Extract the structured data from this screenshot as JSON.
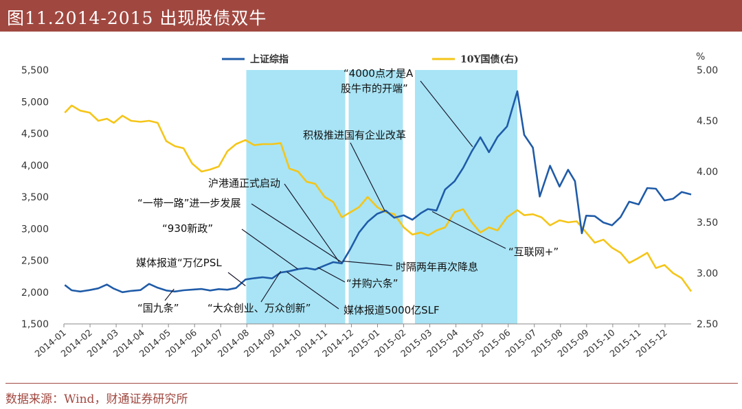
{
  "title": "图11.2014-2015 出现股债双牛",
  "source": "数据来源：Wind，财通证券研究所",
  "colors": {
    "title_bg": "#a04840",
    "shanghai": "#1f5ba8",
    "bond": "#f5c518",
    "highlight": "#a8e4f5",
    "annotation_line": "#1a1a2e"
  },
  "chart_data": {
    "type": "line",
    "x_range": [
      "2014-01",
      "2015-12"
    ],
    "x_ticks": [
      "2014-01",
      "2014-02",
      "2014-03",
      "2014-04",
      "2014-05",
      "2014-06",
      "2014-07",
      "2014-08",
      "2014-09",
      "2014-10",
      "2014-11",
      "2014-12",
      "2015-01",
      "2015-02",
      "2015-03",
      "2015-04",
      "2015-05",
      "2015-06",
      "2015-07",
      "2015-08",
      "2015-09",
      "2015-10",
      "2015-11",
      "2015-12"
    ],
    "y_left": {
      "range": [
        1500,
        5500
      ],
      "ticks": [
        "1,500",
        "2,000",
        "2,500",
        "3,000",
        "3,500",
        "4,000",
        "4,500",
        "5,000",
        "5,500"
      ]
    },
    "y_right": {
      "unit": "%",
      "range": [
        2.5,
        5.0
      ],
      "ticks": [
        "2.50",
        "3.00",
        "3.50",
        "4.00",
        "4.50",
        "5.00"
      ]
    },
    "legend": {
      "placement": "top",
      "items": [
        "上证综指",
        "10Y国债(右)"
      ]
    },
    "highlight_ranges": [
      {
        "start": "2014-08-01",
        "end": "2014-11-24"
      },
      {
        "start": "2014-11-28",
        "end": "2015-01-30"
      },
      {
        "start": "2015-02-13",
        "end": "2015-06-12"
      }
    ],
    "series": [
      {
        "name": "上证综指",
        "axis": "left",
        "points": [
          [
            "2014-01-02",
            2113
          ],
          [
            "2014-01-10",
            2030
          ],
          [
            "2014-01-20",
            2010
          ],
          [
            "2014-01-31",
            2033
          ],
          [
            "2014-02-10",
            2060
          ],
          [
            "2014-02-20",
            2120
          ],
          [
            "2014-02-28",
            2056
          ],
          [
            "2014-03-10",
            1999
          ],
          [
            "2014-03-20",
            2020
          ],
          [
            "2014-03-31",
            2033
          ],
          [
            "2014-04-10",
            2130
          ],
          [
            "2014-04-20",
            2070
          ],
          [
            "2014-04-30",
            2026
          ],
          [
            "2014-05-10",
            2010
          ],
          [
            "2014-05-20",
            2030
          ],
          [
            "2014-05-30",
            2039
          ],
          [
            "2014-06-10",
            2050
          ],
          [
            "2014-06-20",
            2026
          ],
          [
            "2014-06-30",
            2048
          ],
          [
            "2014-07-10",
            2038
          ],
          [
            "2014-07-20",
            2065
          ],
          [
            "2014-07-31",
            2200
          ],
          [
            "2014-08-10",
            2220
          ],
          [
            "2014-08-20",
            2235
          ],
          [
            "2014-08-31",
            2217
          ],
          [
            "2014-09-10",
            2310
          ],
          [
            "2014-09-20",
            2330
          ],
          [
            "2014-09-30",
            2363
          ],
          [
            "2014-10-10",
            2380
          ],
          [
            "2014-10-20",
            2356
          ],
          [
            "2014-10-31",
            2420
          ],
          [
            "2014-11-10",
            2473
          ],
          [
            "2014-11-20",
            2452
          ],
          [
            "2014-11-30",
            2682
          ],
          [
            "2014-12-10",
            2940
          ],
          [
            "2014-12-20",
            3108
          ],
          [
            "2014-12-31",
            3234
          ],
          [
            "2015-01-10",
            3285
          ],
          [
            "2015-01-20",
            3173
          ],
          [
            "2015-01-31",
            3210
          ],
          [
            "2015-02-10",
            3141
          ],
          [
            "2015-02-20",
            3246
          ],
          [
            "2015-02-28",
            3310
          ],
          [
            "2015-03-10",
            3286
          ],
          [
            "2015-03-20",
            3617
          ],
          [
            "2015-03-31",
            3747
          ],
          [
            "2015-04-10",
            3957
          ],
          [
            "2015-04-20",
            4217
          ],
          [
            "2015-04-30",
            4441
          ],
          [
            "2015-05-10",
            4205
          ],
          [
            "2015-05-20",
            4446
          ],
          [
            "2015-05-31",
            4611
          ],
          [
            "2015-06-12",
            5166
          ],
          [
            "2015-06-20",
            4478
          ],
          [
            "2015-06-30",
            4277
          ],
          [
            "2015-07-08",
            3507
          ],
          [
            "2015-07-20",
            3992
          ],
          [
            "2015-07-31",
            3663
          ],
          [
            "2015-08-10",
            3928
          ],
          [
            "2015-08-18",
            3748
          ],
          [
            "2015-08-26",
            2927
          ],
          [
            "2015-08-31",
            3205
          ],
          [
            "2015-09-10",
            3198
          ],
          [
            "2015-09-20",
            3097
          ],
          [
            "2015-09-30",
            3053
          ],
          [
            "2015-10-10",
            3183
          ],
          [
            "2015-10-20",
            3425
          ],
          [
            "2015-10-31",
            3382
          ],
          [
            "2015-11-10",
            3640
          ],
          [
            "2015-11-20",
            3630
          ],
          [
            "2015-11-30",
            3445
          ],
          [
            "2015-12-10",
            3472
          ],
          [
            "2015-12-20",
            3578
          ],
          [
            "2015-12-31",
            3539
          ]
        ]
      },
      {
        "name": "10Y国债(右)",
        "axis": "right",
        "points": [
          [
            "2014-01-02",
            4.58
          ],
          [
            "2014-01-10",
            4.65
          ],
          [
            "2014-01-20",
            4.6
          ],
          [
            "2014-01-31",
            4.58
          ],
          [
            "2014-02-10",
            4.5
          ],
          [
            "2014-02-20",
            4.52
          ],
          [
            "2014-02-28",
            4.48
          ],
          [
            "2014-03-10",
            4.55
          ],
          [
            "2014-03-20",
            4.5
          ],
          [
            "2014-03-31",
            4.49
          ],
          [
            "2014-04-10",
            4.5
          ],
          [
            "2014-04-20",
            4.48
          ],
          [
            "2014-04-30",
            4.3
          ],
          [
            "2014-05-10",
            4.25
          ],
          [
            "2014-05-20",
            4.23
          ],
          [
            "2014-05-30",
            4.08
          ],
          [
            "2014-06-10",
            4.0
          ],
          [
            "2014-06-20",
            4.02
          ],
          [
            "2014-06-30",
            4.05
          ],
          [
            "2014-07-10",
            4.2
          ],
          [
            "2014-07-20",
            4.27
          ],
          [
            "2014-07-31",
            4.31
          ],
          [
            "2014-08-10",
            4.26
          ],
          [
            "2014-08-20",
            4.27
          ],
          [
            "2014-08-31",
            4.27
          ],
          [
            "2014-09-10",
            4.28
          ],
          [
            "2014-09-20",
            4.03
          ],
          [
            "2014-09-30",
            4.0
          ],
          [
            "2014-10-10",
            3.9
          ],
          [
            "2014-10-20",
            3.88
          ],
          [
            "2014-10-31",
            3.75
          ],
          [
            "2014-11-10",
            3.7
          ],
          [
            "2014-11-20",
            3.55
          ],
          [
            "2014-11-30",
            3.6
          ],
          [
            "2014-12-10",
            3.65
          ],
          [
            "2014-12-20",
            3.75
          ],
          [
            "2014-12-31",
            3.65
          ],
          [
            "2015-01-10",
            3.6
          ],
          [
            "2015-01-20",
            3.58
          ],
          [
            "2015-01-31",
            3.45
          ],
          [
            "2015-02-10",
            3.38
          ],
          [
            "2015-02-20",
            3.4
          ],
          [
            "2015-02-28",
            3.37
          ],
          [
            "2015-03-10",
            3.42
          ],
          [
            "2015-03-20",
            3.45
          ],
          [
            "2015-03-31",
            3.6
          ],
          [
            "2015-04-10",
            3.63
          ],
          [
            "2015-04-20",
            3.5
          ],
          [
            "2015-04-30",
            3.4
          ],
          [
            "2015-05-10",
            3.45
          ],
          [
            "2015-05-20",
            3.42
          ],
          [
            "2015-05-31",
            3.55
          ],
          [
            "2015-06-12",
            3.62
          ],
          [
            "2015-06-20",
            3.57
          ],
          [
            "2015-06-30",
            3.58
          ],
          [
            "2015-07-10",
            3.55
          ],
          [
            "2015-07-20",
            3.47
          ],
          [
            "2015-07-31",
            3.52
          ],
          [
            "2015-08-10",
            3.5
          ],
          [
            "2015-08-20",
            3.51
          ],
          [
            "2015-08-31",
            3.4
          ],
          [
            "2015-09-10",
            3.3
          ],
          [
            "2015-09-20",
            3.33
          ],
          [
            "2015-09-30",
            3.25
          ],
          [
            "2015-10-10",
            3.2
          ],
          [
            "2015-10-20",
            3.1
          ],
          [
            "2015-10-31",
            3.15
          ],
          [
            "2015-11-10",
            3.2
          ],
          [
            "2015-11-20",
            3.05
          ],
          [
            "2015-11-30",
            3.08
          ],
          [
            "2015-12-10",
            3.0
          ],
          [
            "2015-12-20",
            2.95
          ],
          [
            "2015-12-31",
            2.82
          ]
        ]
      }
    ],
    "annotations": [
      {
        "text": "“国九条”",
        "date": "2014-05-09",
        "value": 2050
      },
      {
        "text": "媒体报道“万亿PSL",
        "date": "2014-07-31",
        "value": 2100
      },
      {
        "text": "“大众创业、万众创新”",
        "date": "2014-09-10",
        "value": 2330
      },
      {
        "text": "“930新政”",
        "date": "2014-09-30",
        "value": 2363
      },
      {
        "text": "“一带一路”进一步发展",
        "date": "2014-11-20",
        "value": 2470
      },
      {
        "text": "沪港通正式启动",
        "date": "2014-11-17",
        "value": 2475
      },
      {
        "text": "“并购六条”",
        "date": "2014-10-23",
        "value": 2390
      },
      {
        "text": "媒体报道5000亿SLF",
        "date": "2014-09-17",
        "value": 2320
      },
      {
        "text": "时隔两年再次降息",
        "date": "2014-11-21",
        "value": 2490
      },
      {
        "text": "积极推进国有企业改革",
        "date": "2015-01-09",
        "value": 3280
      },
      {
        "text": "“4000点才是A",
        "text2": "股牛市的开端”",
        "date": "2015-04-21",
        "value": 4290
      },
      {
        "text": "“互联网+”",
        "date": "2015-03-05",
        "value": 3270
      }
    ]
  }
}
